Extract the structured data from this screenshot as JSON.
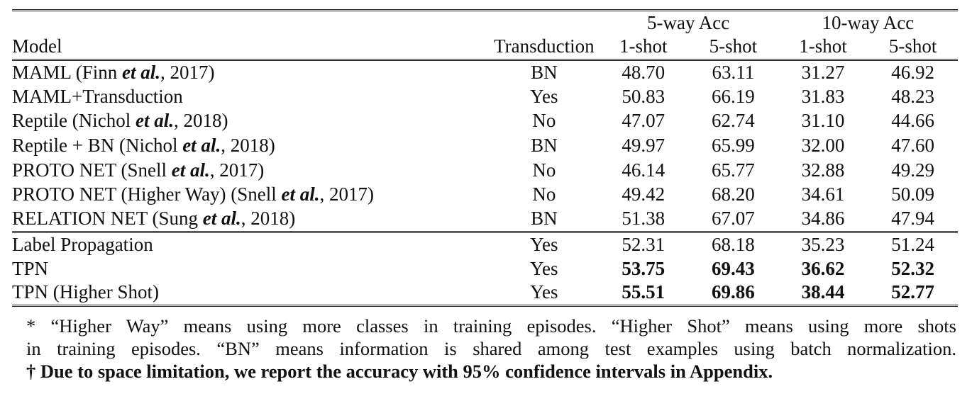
{
  "header": {
    "group_5way": "5-way Acc",
    "group_10way": "10-way Acc",
    "col_model": "Model",
    "col_transduction": "Transduction",
    "col_shot_5w_1": "1-shot",
    "col_shot_5w_5": "5-shot",
    "col_shot_10w_1": "1-shot",
    "col_shot_10w_5": "5-shot"
  },
  "rows": [
    {
      "model": "MAML (Finn et al., 2017)",
      "transduction": "BN",
      "acc": [
        "48.70",
        "63.11",
        "31.27",
        "46.92"
      ],
      "values_bold": false
    },
    {
      "model": "MAML+Transduction",
      "transduction": "Yes",
      "acc": [
        "50.83",
        "66.19",
        "31.83",
        "48.23"
      ],
      "values_bold": false
    },
    {
      "model": "Reptile (Nichol et al., 2018)",
      "transduction": "No",
      "acc": [
        "47.07",
        "62.74",
        "31.10",
        "44.66"
      ],
      "values_bold": false
    },
    {
      "model": "Reptile + BN (Nichol et al., 2018)",
      "transduction": "BN",
      "acc": [
        "49.97",
        "65.99",
        "32.00",
        "47.60"
      ],
      "values_bold": false
    },
    {
      "model": "PROTO NET (Snell et al., 2017)",
      "transduction": "No",
      "acc": [
        "46.14",
        "65.77",
        "32.88",
        "49.29"
      ],
      "values_bold": false
    },
    {
      "model": "PROTO NET (Higher Way) (Snell et al., 2017)",
      "transduction": "No",
      "acc": [
        "49.42",
        "68.20",
        "34.61",
        "50.09"
      ],
      "values_bold": false
    },
    {
      "model": "RELATION NET (Sung et al., 2018)",
      "transduction": "BN",
      "acc": [
        "51.38",
        "67.07",
        "34.86",
        "47.94"
      ],
      "values_bold": false
    },
    {
      "model": "Label Propagation",
      "transduction": "Yes",
      "acc": [
        "52.31",
        "68.18",
        "35.23",
        "51.24"
      ],
      "values_bold": false
    },
    {
      "model": "TPN",
      "transduction": "Yes",
      "acc": [
        "53.75",
        "69.43",
        "36.62",
        "52.32"
      ],
      "values_bold": true
    },
    {
      "model": "TPN (Higher Shot)",
      "transduction": "Yes",
      "acc": [
        "55.51",
        "69.86",
        "38.44",
        "52.77"
      ],
      "values_bold": true
    }
  ],
  "notes": {
    "line1": "* “Higher Way” means using more classes in training episodes. “Higher Shot” means using more shots",
    "line2": "in training episodes. “BN” means information is shared among test examples using batch normalization.",
    "line3": "† Due to space limitation, we report the accuracy with 95% confidence intervals in Appendix."
  }
}
